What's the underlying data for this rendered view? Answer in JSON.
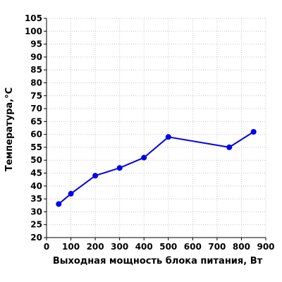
{
  "chart_data": {
    "type": "line",
    "title": "",
    "xlabel": "Выходная мощность блока питания, Вт",
    "ylabel": "Температура,°C",
    "xlim": [
      0,
      900
    ],
    "ylim": [
      20,
      105
    ],
    "x_ticks": [
      "0",
      "100",
      "200",
      "300",
      "400",
      "500",
      "600",
      "700",
      "800",
      "900"
    ],
    "y_ticks": [
      "20",
      "25",
      "30",
      "35",
      "40",
      "45",
      "50",
      "55",
      "60",
      "65",
      "70",
      "75",
      "80",
      "85",
      "90",
      "95",
      "100",
      "105"
    ],
    "grid": true,
    "legend": "none",
    "series": [
      {
        "color": "#0000ee",
        "x": [
          50,
          100,
          200,
          300,
          400,
          500,
          750,
          850
        ],
        "y": [
          33,
          37,
          44,
          47,
          51,
          59,
          55,
          61
        ]
      }
    ]
  }
}
